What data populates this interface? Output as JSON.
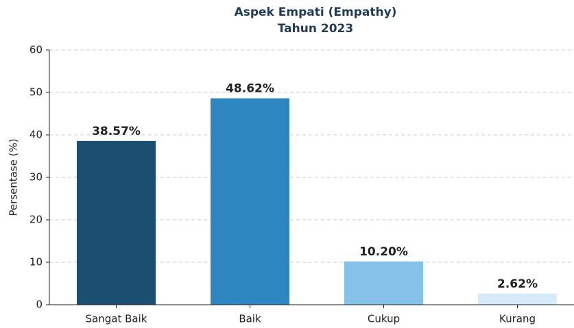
{
  "chart_data": {
    "type": "bar",
    "title": [
      "Aspek Empati (Empathy)",
      "Tahun 2023"
    ],
    "ylabel": "Persentase (%)",
    "categories": [
      "Sangat Baik",
      "Baik",
      "Cukup",
      "Kurang"
    ],
    "values": [
      38.57,
      48.62,
      10.2,
      2.62
    ],
    "value_labels": [
      "38.57%",
      "48.62%",
      "10.20%",
      "2.62%"
    ],
    "colors": [
      "#1b4f72",
      "#2e86c1",
      "#85c1e9",
      "#d6eaf8"
    ],
    "ylim": [
      0,
      60
    ],
    "yticks": [
      0,
      10,
      20,
      30,
      40,
      50,
      60
    ],
    "grid": true
  }
}
